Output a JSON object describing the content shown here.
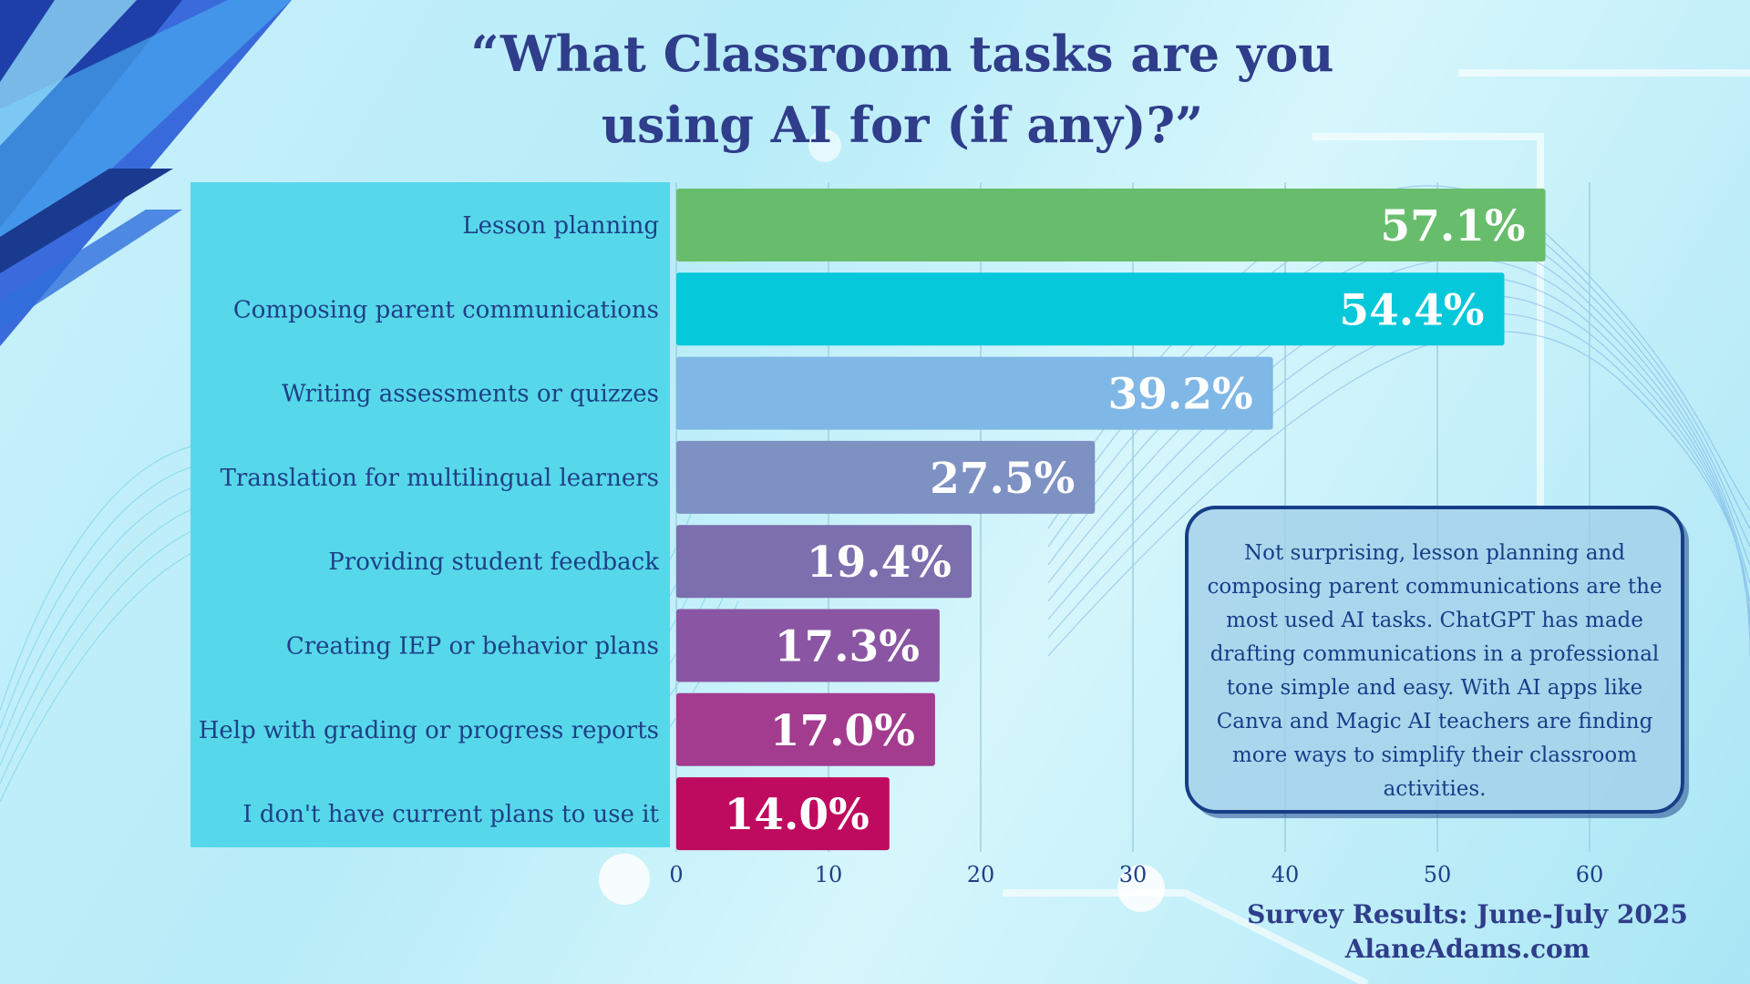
{
  "title_line1": "“What Classroom tasks are you",
  "title_line2": "using AI for (if any)?”",
  "callout": "Not surprising, lesson planning and composing parent communications are the most used AI tasks. ChatGPT has made drafting communications in a professional tone simple and easy. With AI apps like Canva and Magic AI teachers are finding more ways to simplify their classroom activities.",
  "footer_line1": "Survey Results: June-July 2025",
  "footer_line2": "AlaneAdams.com",
  "chart_data": {
    "type": "bar",
    "orientation": "horizontal",
    "categories": [
      "Lesson planning",
      "Composing parent communications",
      "Writing assessments or quizzes",
      "Translation for multilingual learners",
      "Providing student feedback",
      "Creating IEP or behavior plans",
      "Help with grading or progress reports",
      "I don't have current plans to use it"
    ],
    "values": [
      57.1,
      54.4,
      39.2,
      27.5,
      19.4,
      17.3,
      17.0,
      14.0
    ],
    "value_labels": [
      "57.1%",
      "54.4%",
      "39.2%",
      "27.5%",
      "19.4%",
      "17.3%",
      "17.0%",
      "14.0%"
    ],
    "colors": [
      "#67bd6b",
      "#05c8db",
      "#7fb7e6",
      "#7d91c3",
      "#7c6fae",
      "#8a56a3",
      "#a33b8f",
      "#bf0b5f"
    ],
    "xticks": [
      0,
      10,
      20,
      30,
      40,
      50,
      60
    ],
    "xlim": [
      0,
      60
    ],
    "grid": true
  }
}
